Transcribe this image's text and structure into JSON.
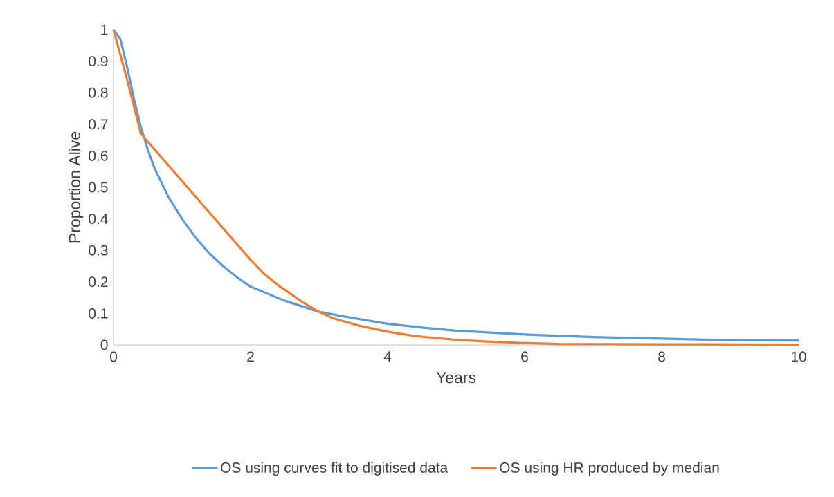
{
  "chart_data": {
    "type": "line",
    "xlabel": "Years",
    "ylabel": "Proportion Alive",
    "xlim": [
      0,
      10
    ],
    "ylim": [
      0,
      1
    ],
    "xticks": [
      0,
      2,
      4,
      6,
      8,
      10
    ],
    "yticks": [
      0,
      0.1,
      0.2,
      0.3,
      0.4,
      0.5,
      0.6,
      0.7,
      0.8,
      0.9,
      1
    ],
    "grid": false,
    "legend": "bottom",
    "marker": "none",
    "line_style": "solid",
    "series": [
      {
        "name": "OS using curves fit to digitised data",
        "color": "#5b9bd5",
        "x": [
          0,
          0.1,
          0.2,
          0.3,
          0.4,
          0.5,
          0.6,
          0.8,
          1,
          1.2,
          1.4,
          1.6,
          1.8,
          2,
          2.5,
          3,
          3.5,
          4,
          4.5,
          5,
          6,
          7,
          8,
          9,
          10
        ],
        "values": [
          1,
          0.97,
          0.88,
          0.78,
          0.69,
          0.62,
          0.56,
          0.47,
          0.4,
          0.34,
          0.29,
          0.25,
          0.215,
          0.185,
          0.14,
          0.105,
          0.085,
          0.067,
          0.055,
          0.045,
          0.033,
          0.025,
          0.02,
          0.015,
          0.014
        ]
      },
      {
        "name": "OS using HR produced by median",
        "color": "#ed7d31",
        "x": [
          0,
          0.2,
          0.4,
          0.6,
          0.8,
          1,
          1.2,
          1.4,
          1.6,
          1.8,
          2,
          2.2,
          2.4,
          2.6,
          2.8,
          3,
          3.2,
          3.6,
          4,
          4.4,
          5,
          5.5,
          6,
          6.5,
          8,
          10
        ],
        "values": [
          1,
          0.84,
          0.67,
          0.62,
          0.57,
          0.52,
          0.47,
          0.42,
          0.37,
          0.32,
          0.27,
          0.225,
          0.19,
          0.16,
          0.13,
          0.105,
          0.085,
          0.06,
          0.042,
          0.028,
          0.016,
          0.01,
          0.006,
          0.003,
          0.002,
          0.001
        ]
      }
    ]
  }
}
